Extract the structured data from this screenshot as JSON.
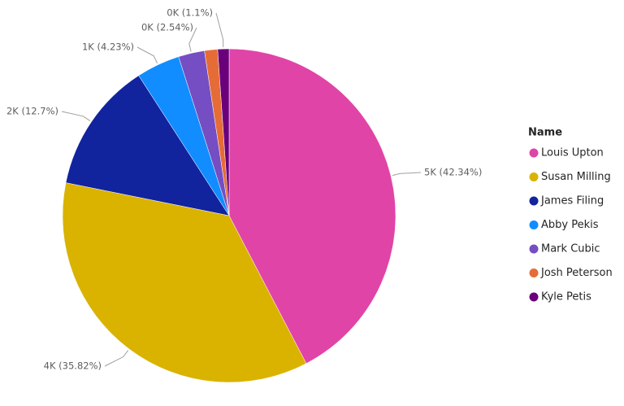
{
  "chart_data": {
    "type": "pie",
    "legend_title": "Name",
    "categories": [
      "Louis Upton",
      "Susan Milling",
      "James Filing",
      "Abby Pekis",
      "Mark Cubic",
      "Josh Peterson",
      "Kyle Petis"
    ],
    "values": [
      42.34,
      35.82,
      12.7,
      4.23,
      2.54,
      1.27,
      1.1
    ],
    "value_labels": [
      "5K (42.34%)",
      "4K (35.82%)",
      "2K (12.7%)",
      "1K (4.23%)",
      "0K (2.54%)",
      null,
      "0K (1.1%)"
    ],
    "colors": [
      "#e044a7",
      "#d9b300",
      "#12239e",
      "#118dff",
      "#744ec2",
      "#e66c37",
      "#6b007b"
    ],
    "legend": "right"
  }
}
